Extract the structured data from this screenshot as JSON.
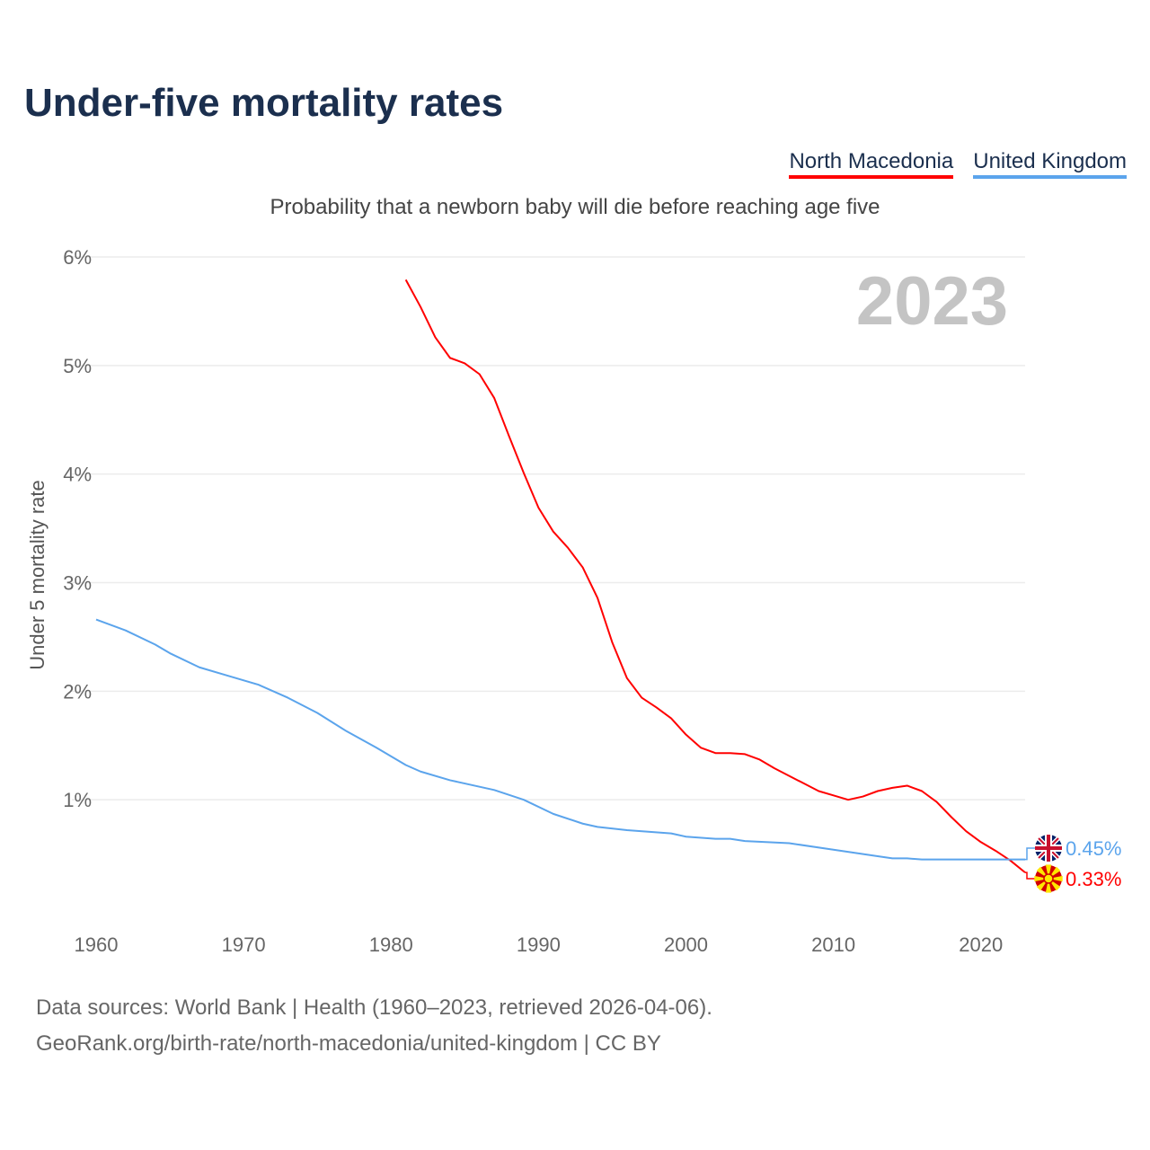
{
  "chart_data": {
    "type": "line",
    "title": "Under-five mortality rates",
    "subtitle": "Probability that a newborn baby will die before reaching age five",
    "ylabel": "Under 5 mortality rate",
    "xlabel": "",
    "year_display": "2023",
    "xlim": [
      1960,
      2023
    ],
    "ylim": [
      0,
      6
    ],
    "x_ticks": [
      "1960",
      "1970",
      "1980",
      "1990",
      "2000",
      "2010",
      "2020"
    ],
    "x_tick_values": [
      1960,
      1970,
      1980,
      1990,
      2000,
      2010,
      2020
    ],
    "y_ticks": [
      "1%",
      "2%",
      "3%",
      "4%",
      "5%",
      "6%"
    ],
    "y_tick_values": [
      1,
      2,
      3,
      4,
      5,
      6
    ],
    "grid": true,
    "legend_position": "top-right",
    "series": [
      {
        "name": "North Macedonia",
        "color": "#ff0000",
        "end_label": "0.33%",
        "flag": "north-macedonia-flag",
        "x": [
          1981,
          1982,
          1983,
          1984,
          1985,
          1986,
          1987,
          1988,
          1989,
          1990,
          1991,
          1992,
          1993,
          1994,
          1995,
          1996,
          1997,
          1998,
          1999,
          2000,
          2001,
          2002,
          2003,
          2004,
          2005,
          2006,
          2007,
          2008,
          2009,
          2010,
          2011,
          2012,
          2013,
          2014,
          2015,
          2016,
          2017,
          2018,
          2019,
          2020,
          2021,
          2022,
          2023
        ],
        "y": [
          5.79,
          5.54,
          5.26,
          5.07,
          5.02,
          4.92,
          4.7,
          4.35,
          4.01,
          3.69,
          3.47,
          3.32,
          3.14,
          2.86,
          2.45,
          2.12,
          1.94,
          1.85,
          1.75,
          1.6,
          1.48,
          1.43,
          1.43,
          1.42,
          1.37,
          1.29,
          1.22,
          1.15,
          1.08,
          1.04,
          1.0,
          1.03,
          1.08,
          1.11,
          1.13,
          1.08,
          0.98,
          0.84,
          0.71,
          0.61,
          0.53,
          0.44,
          0.33
        ]
      },
      {
        "name": "United Kingdom",
        "color": "#5ba4ec",
        "end_label": "0.45%",
        "flag": "uk-flag",
        "x": [
          1960,
          1962,
          1964,
          1965,
          1967,
          1969,
          1971,
          1973,
          1975,
          1977,
          1979,
          1981,
          1982,
          1984,
          1987,
          1989,
          1991,
          1993,
          1994,
          1996,
          1999,
          2000,
          2002,
          2003,
          2004,
          2007,
          2010,
          2013,
          2014,
          2015,
          2016,
          2023
        ],
        "y": [
          2.66,
          2.56,
          2.43,
          2.35,
          2.22,
          2.14,
          2.06,
          1.94,
          1.8,
          1.63,
          1.48,
          1.32,
          1.26,
          1.18,
          1.09,
          1.0,
          0.87,
          0.78,
          0.75,
          0.72,
          0.69,
          0.66,
          0.64,
          0.64,
          0.62,
          0.6,
          0.54,
          0.48,
          0.46,
          0.46,
          0.45,
          0.45
        ]
      }
    ]
  },
  "footer": {
    "line1": "Data sources: World Bank | Health (1960–2023, retrieved 2026-04-06).",
    "line2": "GeoRank.org/birth-rate/north-macedonia/united-kingdom | CC BY"
  }
}
